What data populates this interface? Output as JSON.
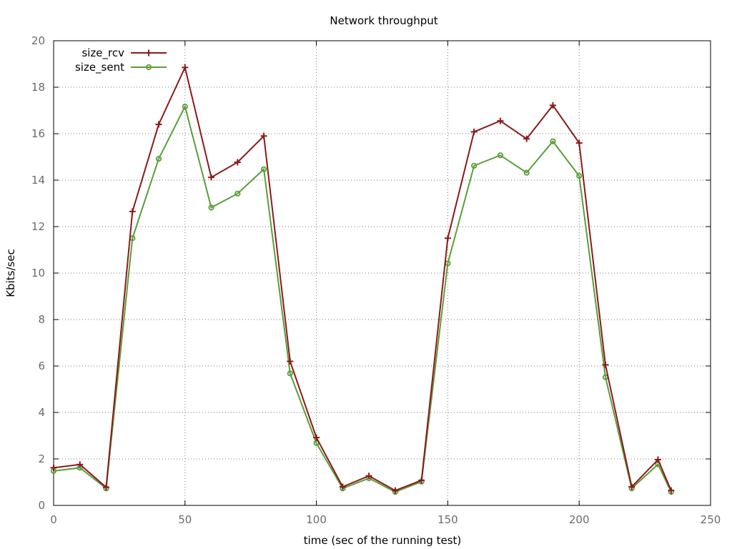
{
  "chart_data": {
    "type": "line",
    "title": "Network throughput",
    "xlabel": "time (sec of the running test)",
    "ylabel": "Kbits/sec",
    "xlim": [
      0,
      250
    ],
    "ylim": [
      0,
      20
    ],
    "x_ticks": [
      0,
      50,
      100,
      150,
      200,
      250
    ],
    "y_ticks": [
      0,
      2,
      4,
      6,
      8,
      10,
      12,
      14,
      16,
      18,
      20
    ],
    "grid": true,
    "legend_position": "top-left",
    "x": [
      0,
      10,
      20,
      30,
      40,
      50,
      60,
      70,
      80,
      90,
      100,
      110,
      120,
      130,
      140,
      150,
      160,
      170,
      180,
      190,
      200,
      210,
      220,
      230,
      235
    ],
    "series": [
      {
        "name": "size_rcv",
        "color": "#8b1a1a",
        "marker": "plus",
        "values": [
          1.62,
          1.76,
          0.78,
          12.65,
          16.4,
          18.85,
          14.12,
          14.77,
          15.9,
          6.2,
          2.92,
          0.8,
          1.27,
          0.64,
          1.08,
          11.5,
          16.08,
          16.55,
          15.78,
          17.22,
          15.6,
          6.05,
          0.8,
          1.97,
          0.64
        ]
      },
      {
        "name": "size_sent",
        "color": "#5a9e3a",
        "marker": "circle",
        "values": [
          1.48,
          1.62,
          0.73,
          11.5,
          14.92,
          17.17,
          12.82,
          13.42,
          14.47,
          5.68,
          2.68,
          0.73,
          1.17,
          0.58,
          1.02,
          10.42,
          14.62,
          15.07,
          14.32,
          15.67,
          14.18,
          5.52,
          0.73,
          1.77,
          0.58
        ]
      }
    ]
  }
}
